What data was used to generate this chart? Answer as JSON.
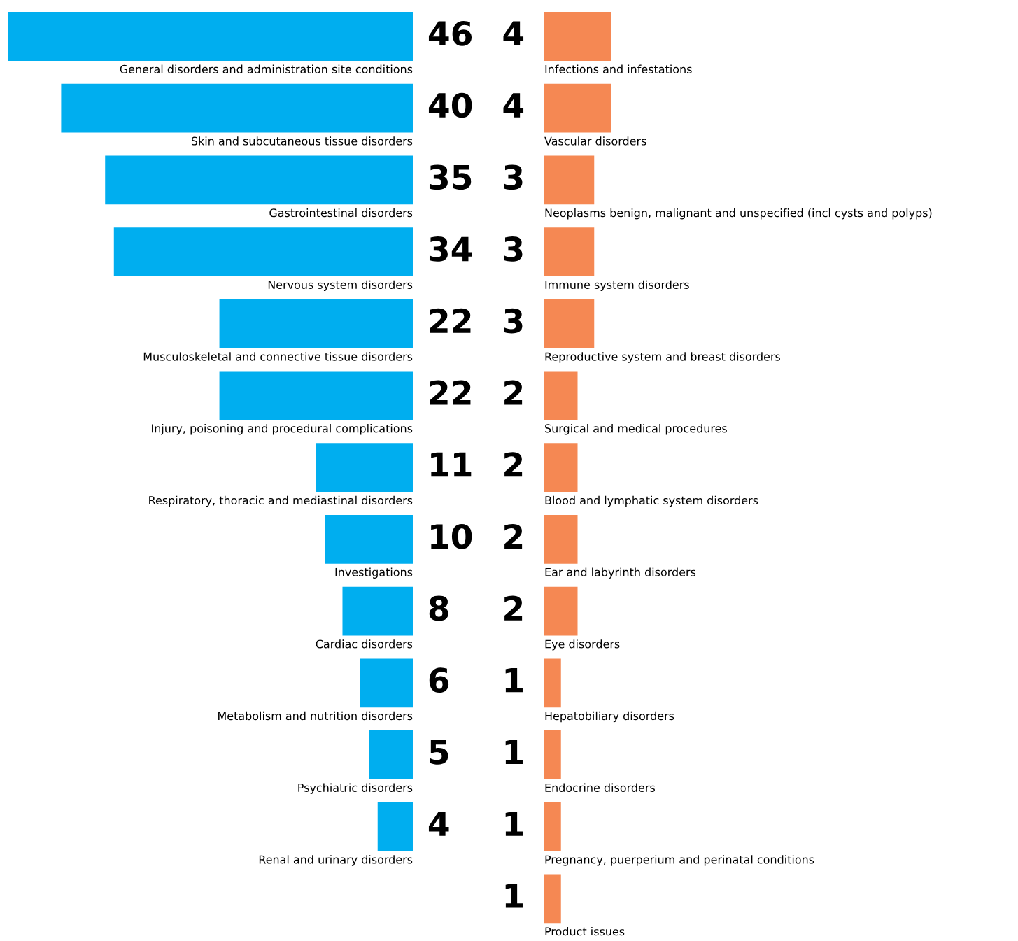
{
  "chart_data": [
    {
      "type": "bar",
      "orientation": "horizontal",
      "color": "#00aeef",
      "data_labels": true,
      "categories": [
        "General disorders and administration site conditions",
        "Skin and subcutaneous tissue disorders",
        "Gastrointestinal disorders",
        "Nervous system disorders",
        "Musculoskeletal and connective tissue disorders",
        "Injury, poisoning and procedural complications",
        "Respiratory, thoracic and mediastinal disorders",
        "Investigations",
        "Cardiac disorders",
        "Metabolism and nutrition disorders",
        "Psychiatric disorders",
        "Renal and urinary disorders"
      ],
      "values": [
        46,
        40,
        35,
        34,
        22,
        22,
        11,
        10,
        8,
        6,
        5,
        4
      ]
    },
    {
      "type": "bar",
      "orientation": "horizontal",
      "color": "#f58853",
      "data_labels": true,
      "categories": [
        "Infections and infestations",
        "Vascular disorders",
        "Neoplasms benign, malignant and unspecified (incl cysts and polyps)",
        "Immune system disorders",
        "Reproductive system and breast disorders",
        "Surgical and medical procedures",
        "Blood and lymphatic system disorders",
        "Ear and labyrinth disorders",
        "Eye disorders",
        "Hepatobiliary disorders",
        "Endocrine disorders",
        "Pregnancy, puerperium and perinatal conditions",
        "Product issues"
      ],
      "values": [
        4,
        4,
        3,
        3,
        3,
        2,
        2,
        2,
        2,
        1,
        1,
        1,
        1
      ]
    }
  ]
}
